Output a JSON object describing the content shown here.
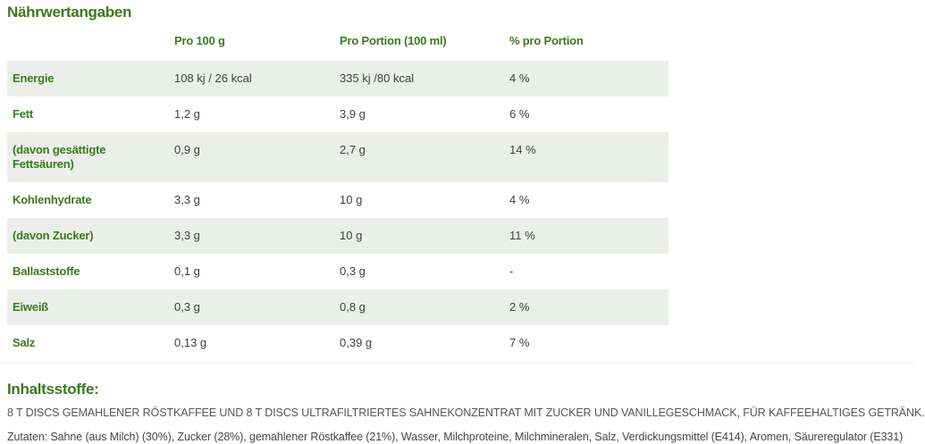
{
  "page": {
    "title": "Nährwertangaben",
    "accent_color": "#3a7a1e",
    "row_shade_color": "#ecefe9",
    "text_color": "#3f4043"
  },
  "table": {
    "columns": [
      "",
      "Pro 100 g",
      "Pro Portion (100 ml)",
      "% pro Portion"
    ],
    "rows": [
      {
        "label": "Energie",
        "per100": "108 kj / 26 kcal",
        "portion": "335 kj /80 kcal",
        "percent": "4 %"
      },
      {
        "label": "Fett",
        "per100": "1,2 g",
        "portion": "3,9 g",
        "percent": "6 %"
      },
      {
        "label": "(davon gesättigte Fettsäuren)",
        "per100": "0,9 g",
        "portion": "2,7 g",
        "percent": "14 %"
      },
      {
        "label": "Kohlenhydrate",
        "per100": "3,3 g",
        "portion": "10 g",
        "percent": "4 %"
      },
      {
        "label": "(davon Zucker)",
        "per100": "3,3 g",
        "portion": "10 g",
        "percent": "11 %"
      },
      {
        "label": "Ballaststoffe",
        "per100": "0,1 g",
        "portion": "0,3 g",
        "percent": "-"
      },
      {
        "label": "Eiweiß",
        "per100": "0,3 g",
        "portion": "0,8 g",
        "percent": "2 %"
      },
      {
        "label": "Salz",
        "per100": "0,13 g",
        "portion": "0,39 g",
        "percent": "7 %"
      }
    ]
  },
  "ingredients": {
    "heading": "Inhaltsstoffe:",
    "description": "8 T DISCS GEMAHLENER RÖSTKAFFEE UND 8 T DISCS ULTRAFILTRIERTES SAHNEKONZENTRAT MIT ZUCKER UND VANILLEGESCHMACK, FÜR KAFFEEHALTIGES GETRÄNK.",
    "zutaten": "Zutaten: Sahne (aus Milch) (30%), Zucker (28%), gemahlener Röstkaffee (21%), Wasser, Milchproteine, Milchmineralen, Salz, Verdickungsmittel (E414), Aromen, Säureregulator (E331)"
  }
}
